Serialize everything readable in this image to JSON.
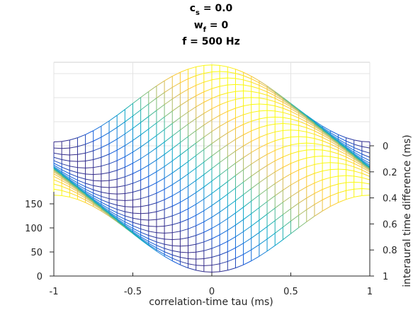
{
  "chart_data": {
    "type": "surface",
    "title": {
      "line1": {
        "sym": "c",
        "sub": "s",
        "value": " = 0.0"
      },
      "line2": {
        "sym": "w",
        "sub": "f",
        "value": " = 0"
      },
      "line3": "f = 500 Hz"
    },
    "xlabel": "correlation-time tau (ms)",
    "ylabel": "interaural time difference (ms)",
    "zlabel": "",
    "xlim": [
      -1,
      1
    ],
    "ylim": [
      0,
      1
    ],
    "zlim": [
      0,
      175
    ],
    "xticks": [
      "-1",
      "-0.5",
      "0",
      "0.5",
      "1"
    ],
    "yticks": [
      "0",
      "0.2",
      "0.4",
      "0.6",
      "0.8",
      "1"
    ],
    "zticks": [
      "0",
      "50",
      "100",
      "150"
    ],
    "grid": true,
    "colormap": "parula",
    "colors": [
      "#352a87",
      "#0f5cdd",
      "#1481d6",
      "#06a4ca",
      "#2eb7a4",
      "#87bf77",
      "#d1bb59",
      "#fec832",
      "#f9fb0e"
    ],
    "surface": {
      "function": "z = 88 + 80*cos(2*pi*500*(tau - itd))",
      "frequency_hz": 500,
      "baseline": 88,
      "amplitude": 80,
      "tau_count": 41,
      "itd_count": 21
    }
  }
}
